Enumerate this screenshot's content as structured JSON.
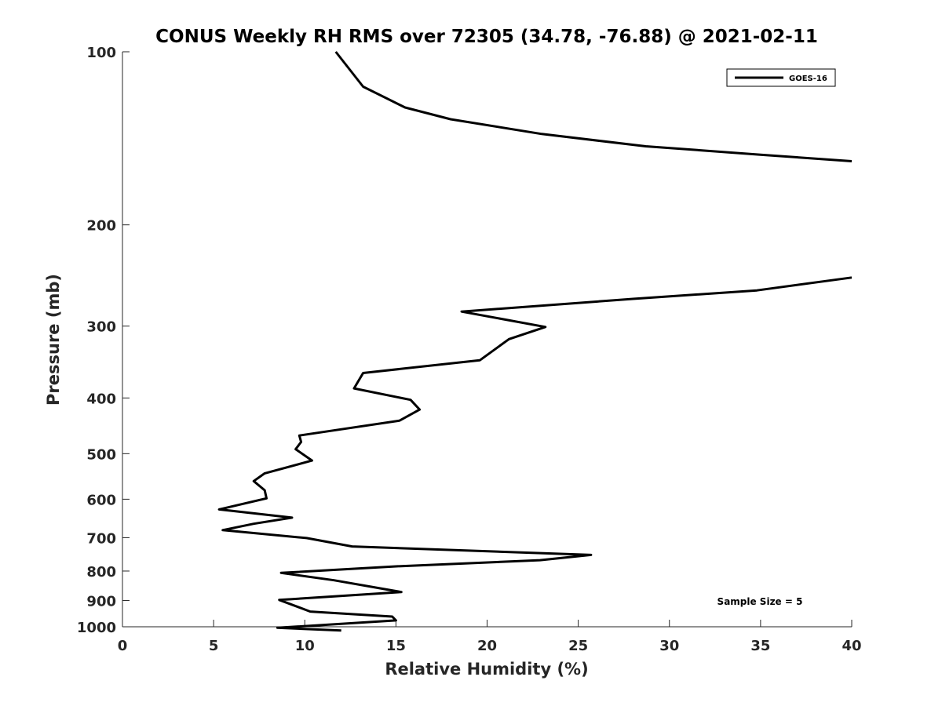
{
  "chart_data": {
    "type": "line",
    "title": "CONUS Weekly RH RMS over 72305 (34.78, -76.88) @ 2021-02-11",
    "xlabel": "Relative Humidity (%)",
    "ylabel": "Pressure (mb)",
    "xlim": [
      0,
      40
    ],
    "ylim": [
      100,
      1000
    ],
    "yscale": "log",
    "y_reversed": true,
    "x_ticks": [
      "0",
      "5",
      "10",
      "15",
      "20",
      "25",
      "30",
      "35",
      "40"
    ],
    "y_ticks": [
      "100",
      "200",
      "300",
      "400",
      "500",
      "600",
      "700",
      "800",
      "900",
      "1000"
    ],
    "grid": false,
    "legend_position": "top-right",
    "annotation": "Sample Size = 5",
    "series": [
      {
        "name": "GOES-16",
        "color": "#000000",
        "segments": [
          [
            {
              "x": 11.7,
              "y": 100
            },
            {
              "x": 13.2,
              "y": 115
            },
            {
              "x": 15.5,
              "y": 125
            },
            {
              "x": 18.0,
              "y": 131
            },
            {
              "x": 23.0,
              "y": 139
            },
            {
              "x": 28.7,
              "y": 146
            },
            {
              "x": 35.0,
              "y": 151
            },
            {
              "x": 40.0,
              "y": 155
            }
          ],
          [
            {
              "x": 40.0,
              "y": 247
            },
            {
              "x": 34.8,
              "y": 260
            },
            {
              "x": 28.0,
              "y": 269
            },
            {
              "x": 18.6,
              "y": 283
            },
            {
              "x": 23.2,
              "y": 301
            },
            {
              "x": 21.2,
              "y": 316
            },
            {
              "x": 19.6,
              "y": 344
            },
            {
              "x": 13.2,
              "y": 362
            },
            {
              "x": 12.7,
              "y": 385
            },
            {
              "x": 15.8,
              "y": 403
            },
            {
              "x": 16.3,
              "y": 419
            },
            {
              "x": 15.2,
              "y": 438
            },
            {
              "x": 9.7,
              "y": 465
            },
            {
              "x": 9.8,
              "y": 477
            },
            {
              "x": 9.5,
              "y": 491
            },
            {
              "x": 10.4,
              "y": 514
            },
            {
              "x": 7.8,
              "y": 541
            },
            {
              "x": 7.2,
              "y": 558
            },
            {
              "x": 7.8,
              "y": 579
            },
            {
              "x": 7.9,
              "y": 598
            },
            {
              "x": 5.3,
              "y": 625
            },
            {
              "x": 9.3,
              "y": 646
            },
            {
              "x": 7.2,
              "y": 662
            },
            {
              "x": 5.5,
              "y": 679
            },
            {
              "x": 10.1,
              "y": 701
            },
            {
              "x": 12.6,
              "y": 725
            },
            {
              "x": 25.7,
              "y": 750
            },
            {
              "x": 22.9,
              "y": 766
            },
            {
              "x": 15.1,
              "y": 785
            },
            {
              "x": 8.7,
              "y": 806
            },
            {
              "x": 11.6,
              "y": 830
            },
            {
              "x": 15.3,
              "y": 870
            },
            {
              "x": 8.6,
              "y": 898
            },
            {
              "x": 10.3,
              "y": 941
            },
            {
              "x": 14.8,
              "y": 960
            },
            {
              "x": 15.0,
              "y": 975
            },
            {
              "x": 8.5,
              "y": 1004
            },
            {
              "x": 12.0,
              "y": 1015
            }
          ]
        ]
      }
    ]
  }
}
